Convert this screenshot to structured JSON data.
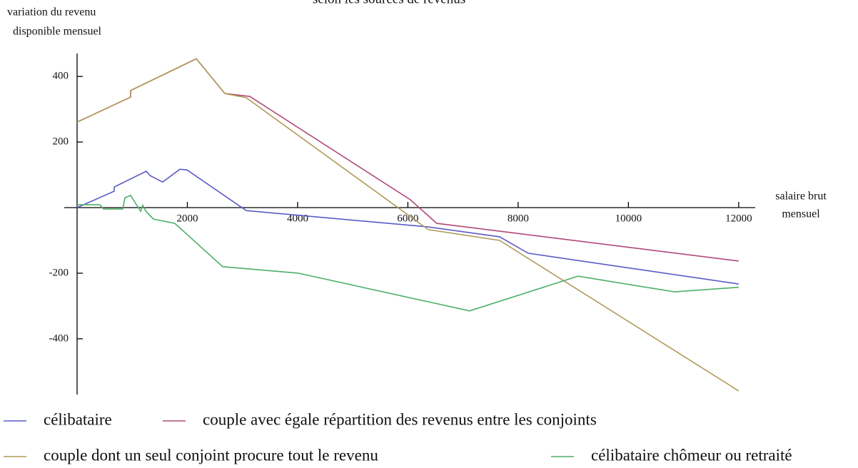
{
  "chart_data": {
    "type": "line",
    "title": "selon les sources de revenus",
    "ylabel": [
      "variation du revenu",
      "disponible mensuel"
    ],
    "xlabel": [
      "salaire brut",
      "mensuel"
    ],
    "xlim": [
      0,
      12300
    ],
    "ylim": [
      -570,
      470
    ],
    "xticks": [
      2000,
      4000,
      6000,
      8000,
      10000,
      12000
    ],
    "yticks": [
      -400,
      -200,
      200,
      400
    ],
    "series": [
      {
        "name": "célibataire",
        "color": "#5b5bc8",
        "x": [
          0,
          673,
          673,
          1256,
          1320,
          1553,
          1864,
          1994,
          3068,
          6369,
          7663,
          8181,
          12000
        ],
        "values": [
          0,
          50,
          63,
          111,
          98,
          78,
          117,
          115,
          -9,
          -59,
          -89,
          -139,
          -233
        ]
      },
      {
        "name": "couple avec égale répartition des revenus entre les conjoints",
        "color": "#b0487a",
        "x": [
          0,
          971,
          971,
          2162,
          2680,
          3133,
          6045,
          6524,
          12000
        ],
        "values": [
          261,
          337,
          357,
          454,
          348,
          339,
          24,
          -48,
          -163
        ]
      },
      {
        "name": "couple dont un seul conjoint procure tout le revenu",
        "color": "#b09a5a",
        "x": [
          0,
          971,
          971,
          2162,
          2680,
          3068,
          6369,
          7663,
          12000
        ],
        "values": [
          261,
          337,
          357,
          454,
          348,
          335,
          -67,
          -100,
          -559
        ]
      },
      {
        "name": "célibataire chômeur ou retraité",
        "color": "#4caf6a",
        "x": [
          0,
          414,
          479,
          828,
          867,
          971,
          1061,
          1152,
          1191,
          1256,
          1385,
          1773,
          2641,
          4013,
          7120,
          9087,
          10834,
          12000
        ],
        "values": [
          9,
          9,
          -4,
          -4,
          30,
          37,
          13,
          -11,
          7,
          -13,
          -35,
          -48,
          -180,
          -200,
          -315,
          -209,
          -257,
          -243
        ]
      }
    ]
  }
}
